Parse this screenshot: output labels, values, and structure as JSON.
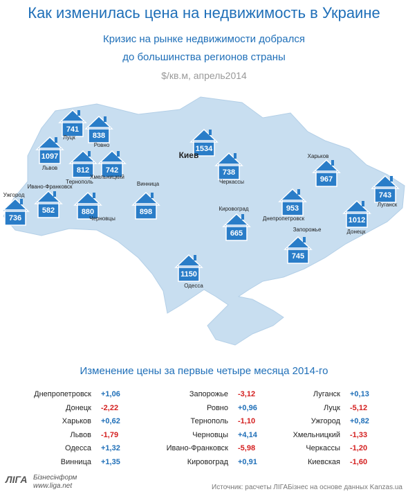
{
  "header": {
    "title": "Как изменилась цена на недвижимость в Украине",
    "subtitle": [
      "Кризис на рынке недвижимости добрался",
      "до большинства регионов страны"
    ],
    "unit": "$/кв.м, апрель2014"
  },
  "map": {
    "markers": [
      {
        "city": "Луцк",
        "value": 741
      },
      {
        "city": "Ровно",
        "value": 838
      },
      {
        "city": "Львов",
        "value": 1097
      },
      {
        "city": "Тернополь",
        "value": 812
      },
      {
        "city": "Хмельницкий",
        "value": 742
      },
      {
        "city": "Ивано-Франковск",
        "value": 582
      },
      {
        "city": "Ужгород",
        "value": 736
      },
      {
        "city": "Черновцы",
        "value": 880
      },
      {
        "city": "Винница",
        "value": 898
      },
      {
        "city": "Киев",
        "value": 1534
      },
      {
        "city": "Черкассы",
        "value": 738
      },
      {
        "city": "Кировоград",
        "value": 665
      },
      {
        "city": "Одесса",
        "value": 1150
      },
      {
        "city": "Днепропетровск",
        "value": 953
      },
      {
        "city": "Запорожье",
        "value": 745
      },
      {
        "city": "Харьков",
        "value": 967
      },
      {
        "city": "Донецк",
        "value": 1012
      },
      {
        "city": "Луганск",
        "value": 743
      }
    ]
  },
  "table": {
    "title": "Изменение цены за первые четыре месяца 2014-го",
    "columns": [
      [
        [
          "Днепропетровск",
          "+1,06"
        ],
        [
          "Донецк",
          "-2,22"
        ],
        [
          "Харьков",
          "+0,62"
        ],
        [
          "Львов",
          "-1,79"
        ],
        [
          "Одесса",
          "+1,32"
        ],
        [
          "Винница",
          "+1,35"
        ]
      ],
      [
        [
          "Запорожье",
          "-3,12"
        ],
        [
          "Ровно",
          "+0,96"
        ],
        [
          "Тернополь",
          "-1,10"
        ],
        [
          "Черновцы",
          "+4,14"
        ],
        [
          "Ивано-Франковск",
          "-5,98"
        ],
        [
          "Кировоград",
          "+0,91"
        ]
      ],
      [
        [
          "Луганск",
          "+0,13"
        ],
        [
          "Луцк",
          "-5,12"
        ],
        [
          "Ужгород",
          "+0,82"
        ],
        [
          "Хмельницкий",
          "-1,33"
        ],
        [
          "Черкассы",
          "-1,20"
        ],
        [
          "Киевская",
          "-1,60"
        ]
      ]
    ]
  },
  "footer": {
    "logo": "ЛIГА",
    "brand": "Бізнесінформ",
    "site": "www.liga.net",
    "source": "Источник: расчеты ЛІГАБізнес на основе данных Kanzas.ua"
  }
}
